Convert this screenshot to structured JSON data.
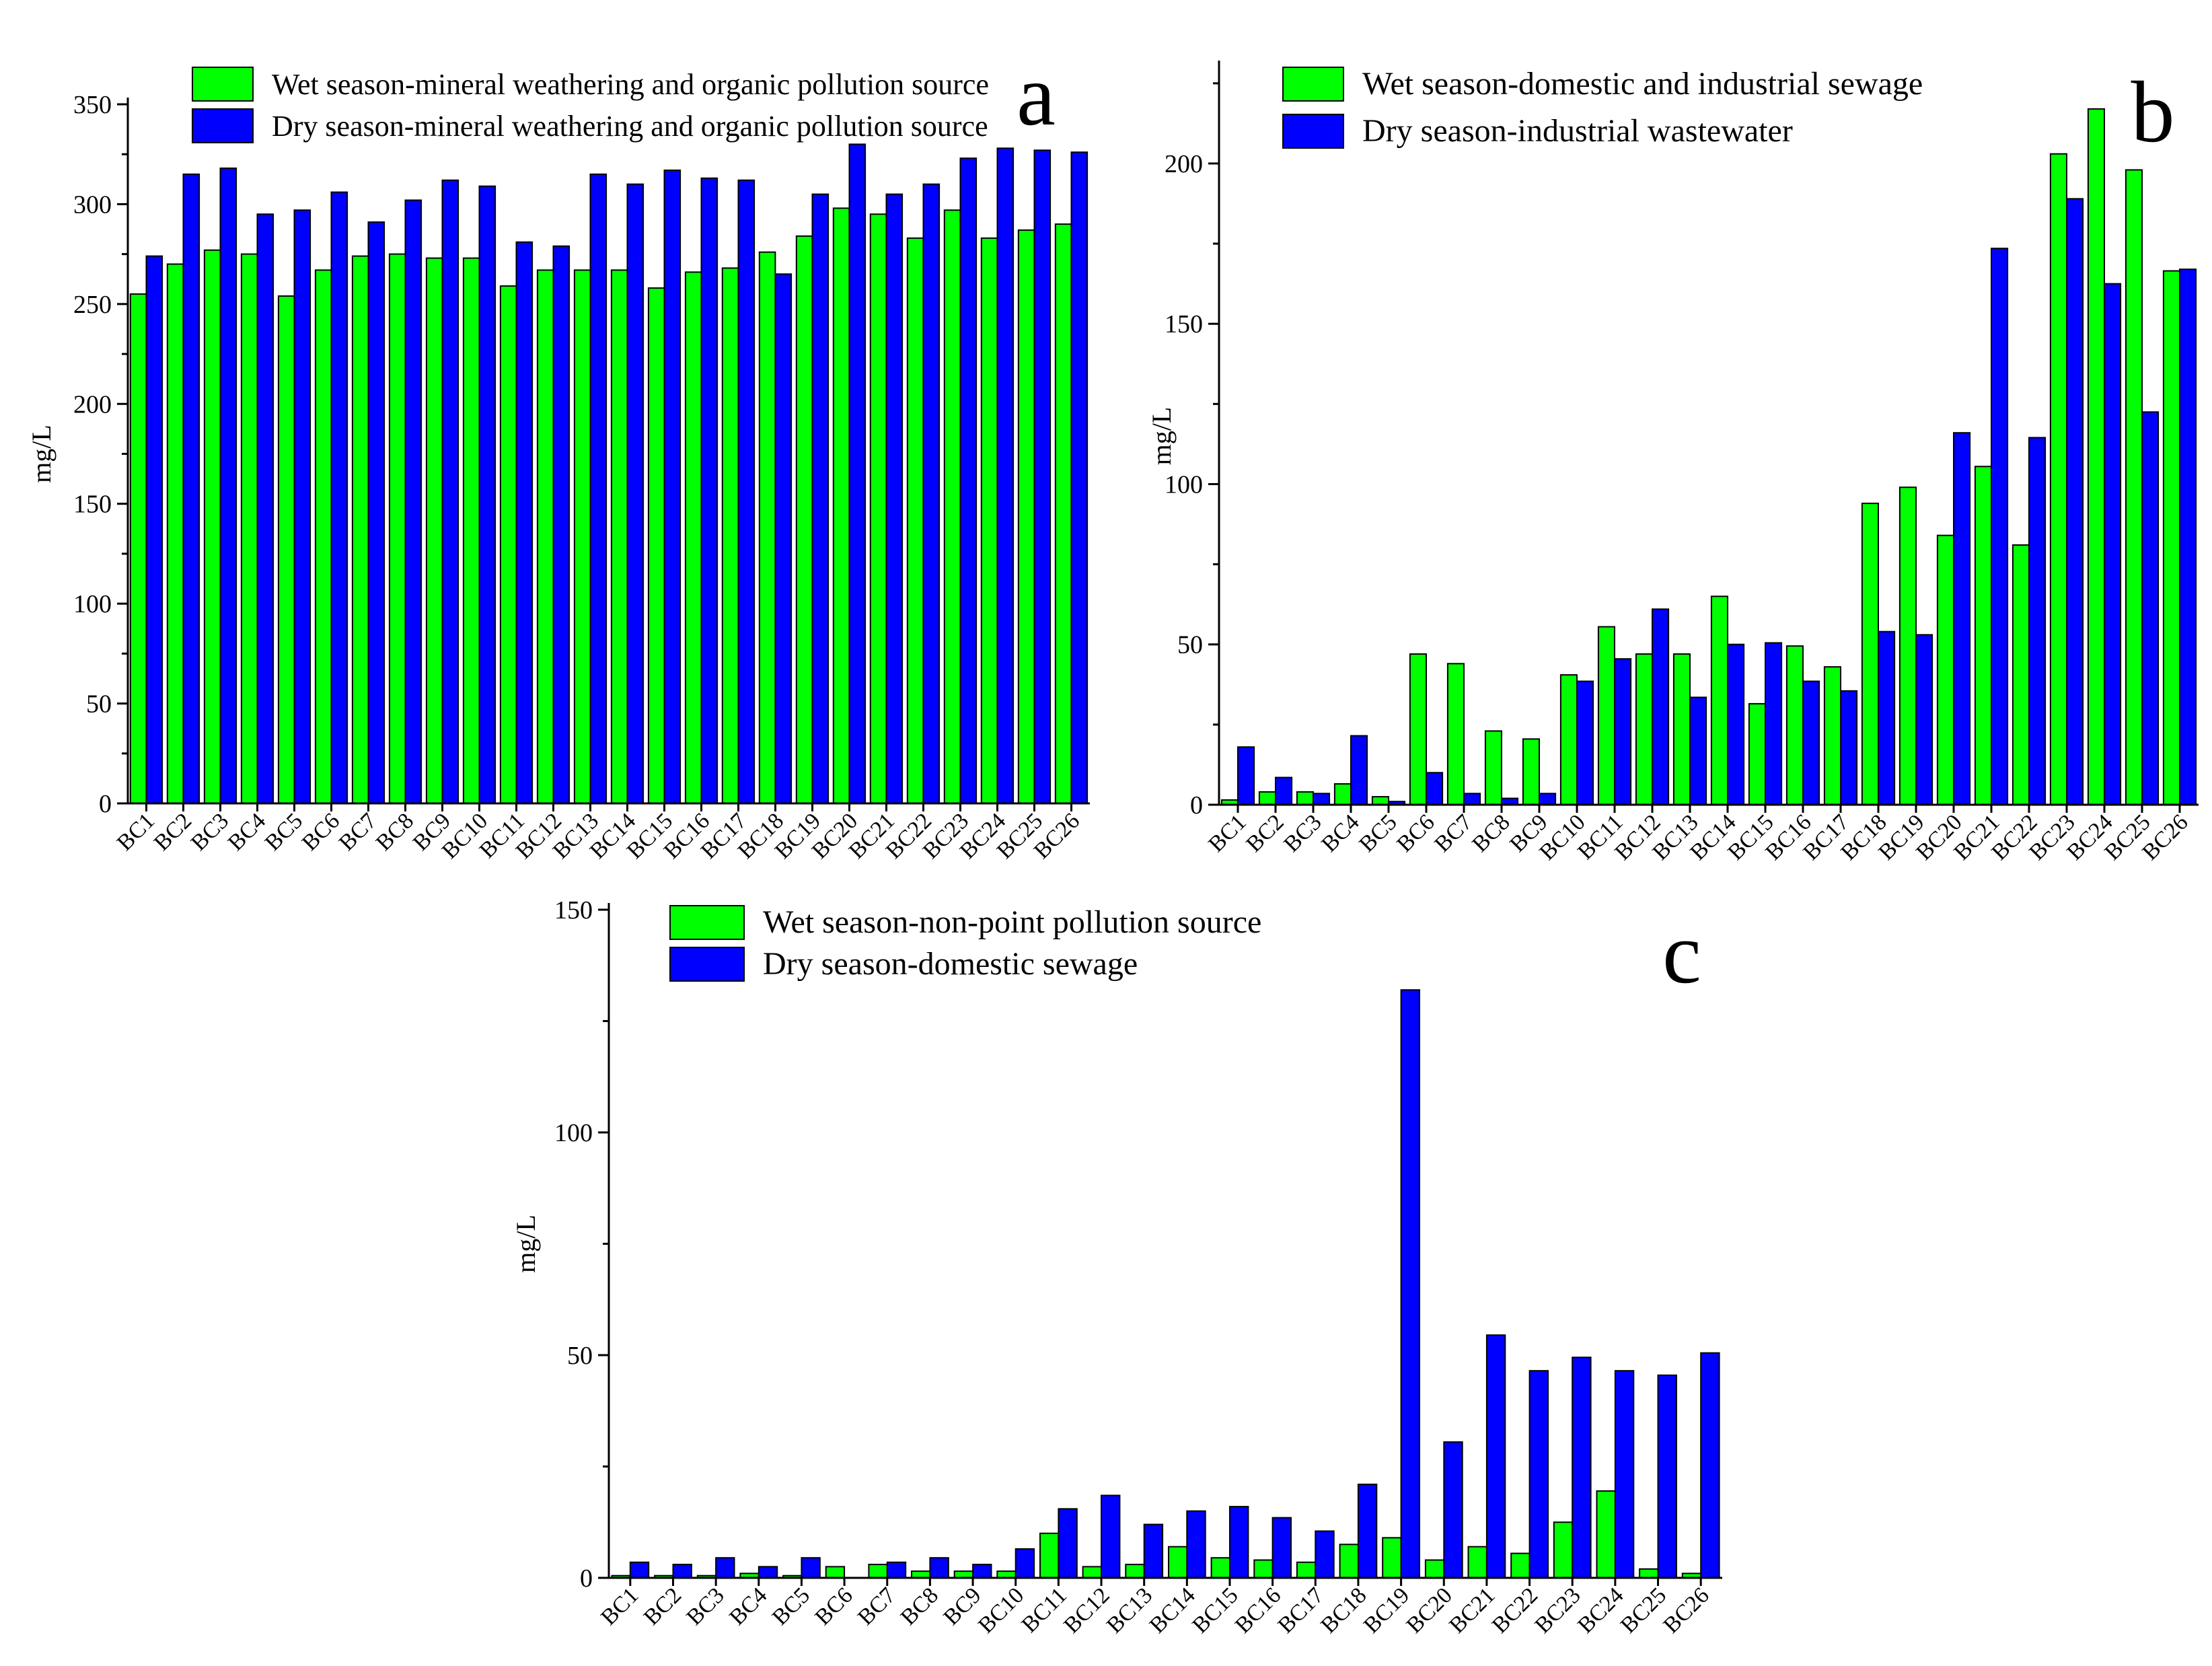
{
  "colors": {
    "wet": "#00ff00",
    "dry": "#0000ff",
    "axis": "#000000"
  },
  "chart_data": [
    {
      "panel": "a",
      "type": "bar",
      "ylabel": "mg/L",
      "ylim": [
        0,
        350
      ],
      "yticks": [
        0,
        50,
        100,
        150,
        200,
        250,
        300,
        350
      ],
      "legend_position": "top-left",
      "categories": [
        "BC1",
        "BC2",
        "BC3",
        "BC4",
        "BC5",
        "BC6",
        "BC7",
        "BC8",
        "BC9",
        "BC10",
        "BC11",
        "BC12",
        "BC13",
        "BC14",
        "BC15",
        "BC16",
        "BC17",
        "BC18",
        "BC19",
        "BC20",
        "BC21",
        "BC22",
        "BC23",
        "BC24",
        "BC25",
        "BC26"
      ],
      "series": [
        {
          "name": "Wet season-mineral weathering and organic pollution source",
          "color": "#00ff00",
          "values": [
            255,
            270,
            277,
            275,
            254,
            267,
            274,
            275,
            273,
            273,
            259,
            267,
            267,
            267,
            258,
            266,
            268,
            276,
            284,
            298,
            295,
            283,
            297,
            283,
            287,
            290
          ]
        },
        {
          "name": "Dry season-mineral weathering and organic pollution source",
          "color": "#0000ff",
          "values": [
            274,
            315,
            318,
            295,
            297,
            306,
            291,
            302,
            312,
            309,
            281,
            279,
            315,
            310,
            317,
            313,
            312,
            265,
            305,
            330,
            305,
            310,
            323,
            328,
            327,
            326
          ]
        }
      ]
    },
    {
      "panel": "b",
      "type": "bar",
      "ylabel": "mg/L",
      "ylim": [
        0,
        230
      ],
      "yticks": [
        0,
        50,
        100,
        150,
        200
      ],
      "legend_position": "top-left",
      "categories": [
        "BC1",
        "BC2",
        "BC3",
        "BC4",
        "BC5",
        "BC6",
        "BC7",
        "BC8",
        "BC9",
        "BC10",
        "BC11",
        "BC12",
        "BC13",
        "BC14",
        "BC15",
        "BC16",
        "BC17",
        "BC18",
        "BC19",
        "BC20",
        "BC21",
        "BC22",
        "BC23",
        "BC24",
        "BC25",
        "BC26"
      ],
      "series": [
        {
          "name": "Wet season-domestic and industrial sewage",
          "color": "#00ff00",
          "values": [
            1.5,
            4,
            4,
            6.5,
            2.5,
            47,
            44,
            23,
            20.5,
            40.5,
            55.5,
            47,
            47,
            65,
            31.5,
            49.5,
            43,
            94,
            99,
            84,
            105.5,
            81,
            203,
            217,
            198,
            166.5
          ]
        },
        {
          "name": "Dry season-industrial wastewater",
          "color": "#0000ff",
          "values": [
            18,
            8.5,
            3.5,
            21.5,
            1,
            10,
            3.5,
            2,
            3.5,
            38.5,
            45.5,
            61,
            33.5,
            50,
            50.5,
            38.5,
            35.5,
            54,
            53,
            116,
            173.5,
            114.5,
            189,
            162.5,
            122.5,
            167
          ]
        }
      ]
    },
    {
      "panel": "c",
      "type": "bar",
      "ylabel": "mg/L",
      "ylim": [
        0,
        150
      ],
      "yticks": [
        0,
        50,
        100,
        150
      ],
      "legend_position": "top-left",
      "categories": [
        "BC1",
        "BC2",
        "BC3",
        "BC4",
        "BC5",
        "BC6",
        "BC7",
        "BC8",
        "BC9",
        "BC10",
        "BC11",
        "BC12",
        "BC13",
        "BC14",
        "BC15",
        "BC16",
        "BC17",
        "BC18",
        "BC19",
        "BC20",
        "BC21",
        "BC22",
        "BC23",
        "BC24",
        "BC25",
        "BC26"
      ],
      "series": [
        {
          "name": "Wet season-non-point pollution source",
          "color": "#00ff00",
          "values": [
            0.5,
            0.5,
            0.5,
            1,
            0.5,
            2.5,
            3,
            1.5,
            1.5,
            1.5,
            10,
            2.5,
            3,
            7,
            4.5,
            4,
            3.5,
            7.5,
            9,
            4,
            7,
            5.5,
            12.5,
            19.5,
            2,
            1
          ]
        },
        {
          "name": "Dry season-domestic sewage",
          "color": "#0000ff",
          "values": [
            3.5,
            3,
            4.5,
            2.5,
            4.5,
            0,
            3.5,
            4.5,
            3,
            6.5,
            15.5,
            18.5,
            12,
            15,
            16,
            13.5,
            10.5,
            21,
            132,
            30.5,
            54.5,
            46.5,
            49.5,
            46.5,
            45.5,
            50.5
          ]
        }
      ]
    }
  ]
}
